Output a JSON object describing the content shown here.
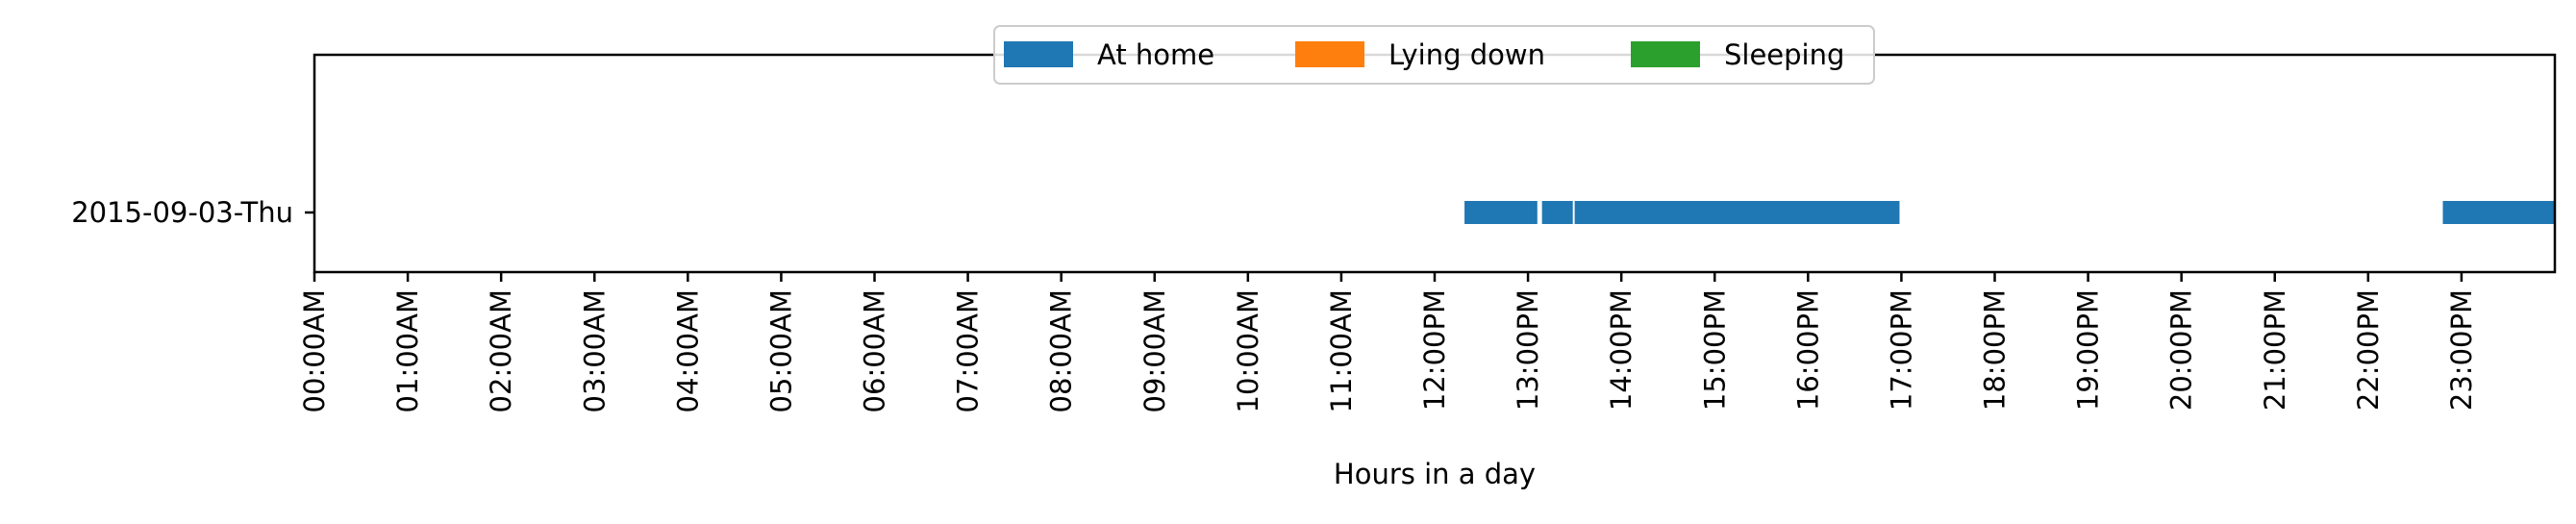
{
  "chart_data": {
    "type": "bar",
    "orientation": "horizontal-timeline",
    "title": "",
    "xlabel": "Hours in a day",
    "ylabel": "",
    "xlim": [
      0,
      24
    ],
    "x_ticks": [
      {
        "value": 0,
        "label": "00:00AM"
      },
      {
        "value": 1,
        "label": "01:00AM"
      },
      {
        "value": 2,
        "label": "02:00AM"
      },
      {
        "value": 3,
        "label": "03:00AM"
      },
      {
        "value": 4,
        "label": "04:00AM"
      },
      {
        "value": 5,
        "label": "05:00AM"
      },
      {
        "value": 6,
        "label": "06:00AM"
      },
      {
        "value": 7,
        "label": "07:00AM"
      },
      {
        "value": 8,
        "label": "08:00AM"
      },
      {
        "value": 9,
        "label": "09:00AM"
      },
      {
        "value": 10,
        "label": "10:00AM"
      },
      {
        "value": 11,
        "label": "11:00AM"
      },
      {
        "value": 12,
        "label": "12:00PM"
      },
      {
        "value": 13,
        "label": "13:00PM"
      },
      {
        "value": 14,
        "label": "14:00PM"
      },
      {
        "value": 15,
        "label": "15:00PM"
      },
      {
        "value": 16,
        "label": "16:00PM"
      },
      {
        "value": 17,
        "label": "17:00PM"
      },
      {
        "value": 18,
        "label": "18:00PM"
      },
      {
        "value": 19,
        "label": "19:00PM"
      },
      {
        "value": 20,
        "label": "20:00PM"
      },
      {
        "value": 21,
        "label": "21:00PM"
      },
      {
        "value": 22,
        "label": "22:00PM"
      },
      {
        "value": 23,
        "label": "23:00PM"
      }
    ],
    "categories": [
      "2015-09-03-Thu"
    ],
    "grid": false,
    "legend": {
      "placement": "top-center",
      "columns": 3
    },
    "series": [
      {
        "name": "At home",
        "color": "#1f77b4",
        "intervals": [
          {
            "row": "2015-09-03-Thu",
            "start": 12.32,
            "end": 13.1
          },
          {
            "row": "2015-09-03-Thu",
            "start": 13.15,
            "end": 13.48
          },
          {
            "row": "2015-09-03-Thu",
            "start": 13.5,
            "end": 16.98
          },
          {
            "row": "2015-09-03-Thu",
            "start": 22.8,
            "end": 24.0
          }
        ]
      },
      {
        "name": "Lying down",
        "color": "#ff7f0e",
        "intervals": []
      },
      {
        "name": "Sleeping",
        "color": "#2ca02c",
        "intervals": []
      }
    ]
  }
}
